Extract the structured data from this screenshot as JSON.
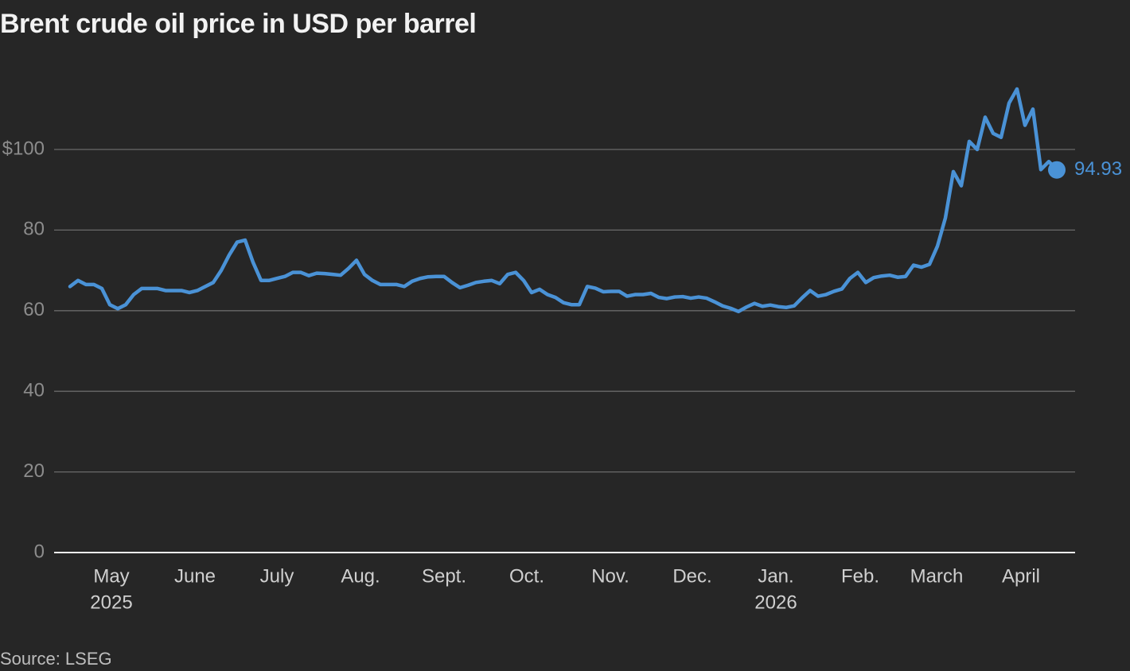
{
  "chart_data": {
    "type": "line",
    "title": "Brent crude oil price in USD per barrel",
    "source": "Source: LSEG",
    "color": "#4a92d6",
    "grid": true,
    "values": [
      66,
      67.5,
      66.5,
      66.5,
      65.5,
      61.5,
      60.5,
      61.5,
      64,
      65.5,
      65.5,
      65.5,
      65,
      65,
      65,
      64.5,
      65,
      66,
      67,
      70,
      73.8,
      77,
      77.5,
      72,
      67.5,
      67.5,
      68,
      68.5,
      69.5,
      69.5,
      68.7,
      69.3,
      69.2,
      69,
      68.8,
      70.5,
      72.5,
      69,
      67.5,
      66.5,
      66.5,
      66.5,
      66,
      67.3,
      68,
      68.4,
      68.5,
      68.5,
      67,
      65.7,
      66.3,
      67,
      67.3,
      67.5,
      66.7,
      69,
      69.5,
      67.5,
      64.5,
      65.3,
      64,
      63.3,
      62,
      61.5,
      61.5,
      66,
      65.6,
      64.7,
      64.8,
      64.8,
      63.6,
      64,
      64,
      64.3,
      63.3,
      63,
      63.4,
      63.5,
      63.1,
      63.4,
      63.1,
      62.2,
      61.2,
      60.6,
      59.8,
      60.9,
      61.8,
      61.1,
      61.4,
      61,
      60.8,
      61.2,
      63.2,
      65,
      63.6,
      64,
      64.8,
      65.4,
      68,
      69.5,
      67,
      68.2,
      68.6,
      68.8,
      68.3,
      68.5,
      71.3,
      70.8,
      71.5,
      76,
      83,
      94.5,
      91,
      102,
      100,
      108,
      104,
      103,
      111.5,
      115,
      106,
      110,
      95,
      97,
      94.93
    ],
    "xlim": [
      -2,
      126.3
    ],
    "xticks": [
      {
        "value": 5.2,
        "label": "May"
      },
      {
        "value": 15.7,
        "label": "June"
      },
      {
        "value": 26,
        "label": "July"
      },
      {
        "value": 36.5,
        "label": "Aug."
      },
      {
        "value": 47,
        "label": "Sept."
      },
      {
        "value": 57.4,
        "label": "Oct."
      },
      {
        "value": 67.9,
        "label": "Nov."
      },
      {
        "value": 78.2,
        "label": "Dec."
      },
      {
        "value": 88.7,
        "label": "Jan."
      },
      {
        "value": 99.3,
        "label": "Feb."
      },
      {
        "value": 108.9,
        "label": "March"
      },
      {
        "value": 119.5,
        "label": "April"
      }
    ],
    "xtick_sublabels": [
      {
        "value": 5.2,
        "label": "2025"
      },
      {
        "value": 88.7,
        "label": "2026"
      }
    ],
    "ylim": [
      0,
      120
    ],
    "yticks": [
      0,
      20,
      40,
      60,
      80,
      {
        "value": 100,
        "label": "$100"
      }
    ]
  }
}
